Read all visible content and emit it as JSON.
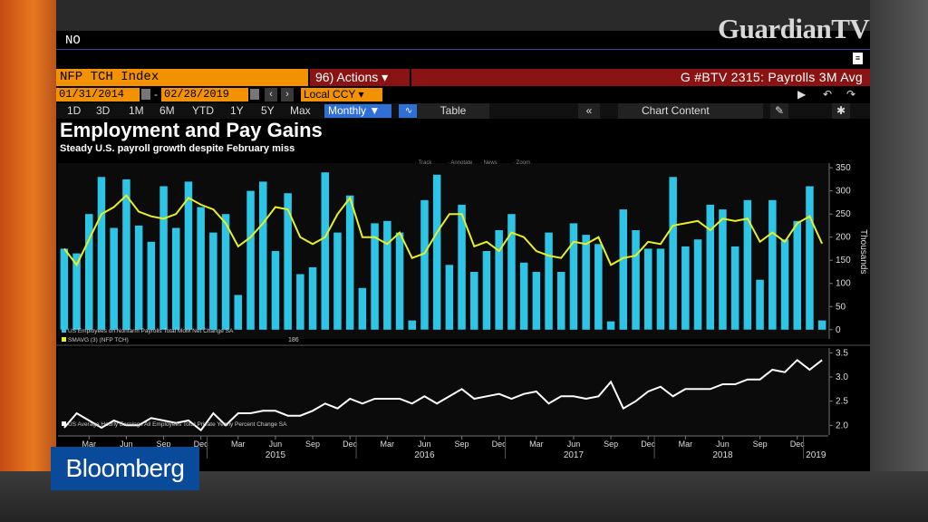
{
  "overlay": {
    "channel_logo": "GuardianTV",
    "brand_logo": "Bloomberg"
  },
  "terminal": {
    "command": "NO",
    "ticker": "NFP TCH Index",
    "actions": "96) Actions ▾",
    "screen_title": "G #BTV 2315: Payrolls 3M Avg",
    "start_date": "01/31/2014",
    "end_date": "02/28/2019",
    "currency": "Local CCY",
    "periods": [
      "1D",
      "3D",
      "1M",
      "6M",
      "YTD",
      "1Y",
      "5Y",
      "Max"
    ],
    "frequency": "Monthly ▼",
    "table_label": "Table",
    "chart_content_label": "Chart Content",
    "back_label": "«"
  },
  "chart_data": [
    {
      "type": "bar",
      "title": "Employment and Pay Gains",
      "subtitle": "Steady U.S. payroll growth despite February miss",
      "toolbar": [
        "Track",
        "Annotate",
        "News",
        "Zoom"
      ],
      "ylabel": "Thousands",
      "ylim": [
        -20,
        360
      ],
      "yticks": [
        0,
        50,
        100,
        150,
        200,
        250,
        300,
        350
      ],
      "x": [
        "2014-01",
        "2014-02",
        "2014-03",
        "2014-04",
        "2014-05",
        "2014-06",
        "2014-07",
        "2014-08",
        "2014-09",
        "2014-10",
        "2014-11",
        "2014-12",
        "2015-01",
        "2015-02",
        "2015-03",
        "2015-04",
        "2015-05",
        "2015-06",
        "2015-07",
        "2015-08",
        "2015-09",
        "2015-10",
        "2015-11",
        "2015-12",
        "2016-01",
        "2016-02",
        "2016-03",
        "2016-04",
        "2016-05",
        "2016-06",
        "2016-07",
        "2016-08",
        "2016-09",
        "2016-10",
        "2016-11",
        "2016-12",
        "2017-01",
        "2017-02",
        "2017-03",
        "2017-04",
        "2017-05",
        "2017-06",
        "2017-07",
        "2017-08",
        "2017-09",
        "2017-10",
        "2017-11",
        "2017-12",
        "2018-01",
        "2018-02",
        "2018-03",
        "2018-04",
        "2018-05",
        "2018-06",
        "2018-07",
        "2018-08",
        "2018-09",
        "2018-10",
        "2018-11",
        "2018-12",
        "2019-01",
        "2019-02"
      ],
      "series": [
        {
          "name": "US Employees on Nonfarm Payrolls Total MoM Net Change SA",
          "color": "#2ec4e6",
          "values": [
            175,
            165,
            250,
            330,
            220,
            325,
            225,
            190,
            310,
            220,
            320,
            265,
            210,
            250,
            75,
            300,
            320,
            170,
            295,
            120,
            135,
            340,
            210,
            290,
            90,
            230,
            235,
            210,
            20,
            280,
            335,
            140,
            270,
            125,
            170,
            215,
            250,
            145,
            125,
            210,
            125,
            230,
            205,
            185,
            18,
            260,
            215,
            175,
            175,
            330,
            180,
            195,
            270,
            260,
            180,
            280,
            108,
            280,
            195,
            235,
            310,
            20
          ]
        },
        {
          "name": "SMAVG (3) (NFP TCH)",
          "color": "#e8f020",
          "last_value": "186",
          "values": [
            175,
            140,
            195,
            250,
            265,
            290,
            255,
            245,
            240,
            250,
            285,
            270,
            260,
            230,
            180,
            200,
            230,
            265,
            260,
            200,
            185,
            200,
            250,
            285,
            200,
            200,
            185,
            210,
            155,
            165,
            210,
            250,
            250,
            180,
            190,
            170,
            210,
            200,
            170,
            160,
            155,
            190,
            185,
            200,
            140,
            155,
            160,
            190,
            185,
            225,
            230,
            235,
            215,
            240,
            235,
            240,
            190,
            210,
            190,
            230,
            245,
            186
          ]
        }
      ]
    },
    {
      "type": "line",
      "ylim": [
        1.8,
        3.6
      ],
      "yticks": [
        2.0,
        2.5,
        3.0,
        3.5
      ],
      "series": [
        {
          "name": "US Average Hourly Earnings All Employees Total Private Yearly Percent Change SA",
          "color": "#ffffff",
          "values": [
            1.95,
            2.25,
            2.1,
            1.95,
            2.1,
            2.0,
            2.0,
            2.15,
            2.1,
            2.05,
            2.1,
            1.9,
            2.25,
            2.0,
            2.25,
            2.25,
            2.3,
            2.3,
            2.2,
            2.2,
            2.3,
            2.45,
            2.35,
            2.55,
            2.45,
            2.55,
            2.55,
            2.55,
            2.45,
            2.6,
            2.45,
            2.6,
            2.75,
            2.55,
            2.6,
            2.65,
            2.55,
            2.65,
            2.7,
            2.45,
            2.6,
            2.6,
            2.55,
            2.6,
            2.9,
            2.35,
            2.5,
            2.7,
            2.8,
            2.6,
            2.75,
            2.75,
            2.75,
            2.85,
            2.85,
            2.95,
            2.95,
            3.15,
            3.1,
            3.35,
            3.15,
            3.35
          ]
        }
      ],
      "x_month_ticks": [
        "Mar",
        "Jun",
        "Sep",
        "Dec"
      ],
      "x_year_labels": [
        "2015",
        "2016",
        "2017",
        "2018",
        "2019"
      ]
    }
  ],
  "colors": {
    "bar": "#2ec4e6",
    "avg_line": "#e8f020",
    "earnings_line": "#ffffff",
    "ticker_bg": "#f39200",
    "red_bar": "#8a1414"
  }
}
